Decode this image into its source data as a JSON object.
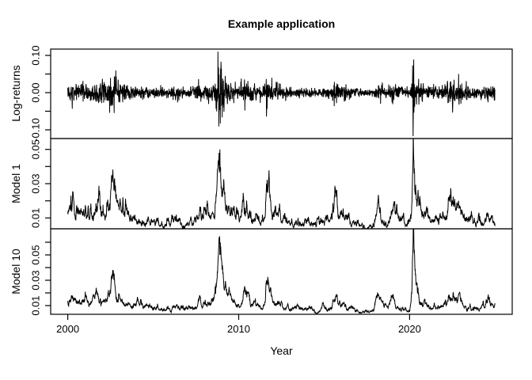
{
  "chart_data": {
    "type": "line",
    "title": "Example application",
    "xlabel": "Year",
    "background": "#ffffff",
    "line_color": "#000000",
    "text_color": "#000000",
    "xlim": [
      1999.0,
      2026.0
    ],
    "x_data_range": [
      2000.0,
      2025.0
    ],
    "x_ticks": [
      2000,
      2010,
      2020
    ],
    "x_tick_labels": [
      "2000",
      "2010",
      "2020"
    ],
    "points_per_year": 80,
    "seed": 42,
    "panels": [
      {
        "name": "log-returns",
        "ylabel": "Log-returns",
        "ylim": [
          -0.1234,
          0.117
        ],
        "ticks": [
          0.1,
          0.05,
          0.0,
          -0.05,
          -0.1
        ],
        "labeled_ticks": [
          0.1,
          0.0,
          -0.1
        ],
        "tick_labels": [
          "0.10",
          "0.00",
          "-0.10"
        ]
      },
      {
        "name": "model-1",
        "ylabel": "Model 1",
        "ylim": [
          0.0037,
          0.0563
        ],
        "ticks": [
          0.05,
          0.04,
          0.03,
          0.02,
          0.01
        ],
        "labeled_ticks": [
          0.05,
          0.03,
          0.01
        ],
        "tick_labels": [
          "0.05",
          "0.03",
          "0.01"
        ]
      },
      {
        "name": "model-10",
        "ylabel": "Model 10",
        "ylim": [
          0.0031,
          0.0706
        ],
        "ticks": [
          0.06,
          0.05,
          0.04,
          0.03,
          0.02,
          0.01
        ],
        "labeled_ticks": [
          0.05,
          0.03,
          0.01
        ],
        "tick_labels": [
          "0.05",
          "0.03",
          "0.01"
        ]
      }
    ],
    "volatility_profile": [
      [
        2000.0,
        0.013
      ],
      [
        2000.25,
        0.016
      ],
      [
        2000.5,
        0.012
      ],
      [
        2000.75,
        0.014
      ],
      [
        2001.0,
        0.013
      ],
      [
        2001.3,
        0.012
      ],
      [
        2001.55,
        0.014
      ],
      [
        2001.72,
        0.019
      ],
      [
        2001.95,
        0.013
      ],
      [
        2002.2,
        0.014
      ],
      [
        2002.45,
        0.02
      ],
      [
        2002.6,
        0.028
      ],
      [
        2002.85,
        0.02
      ],
      [
        2003.05,
        0.017
      ],
      [
        2003.3,
        0.013
      ],
      [
        2003.6,
        0.01
      ],
      [
        2004.0,
        0.009
      ],
      [
        2004.4,
        0.008
      ],
      [
        2004.9,
        0.007
      ],
      [
        2005.3,
        0.0075
      ],
      [
        2005.8,
        0.007
      ],
      [
        2006.2,
        0.008
      ],
      [
        2006.45,
        0.011
      ],
      [
        2006.75,
        0.007
      ],
      [
        2007.0,
        0.0065
      ],
      [
        2007.3,
        0.009
      ],
      [
        2007.65,
        0.013
      ],
      [
        2007.9,
        0.011
      ],
      [
        2008.1,
        0.014
      ],
      [
        2008.35,
        0.011
      ],
      [
        2008.6,
        0.014
      ],
      [
        2008.73,
        0.024
      ],
      [
        2008.82,
        0.04
      ],
      [
        2008.9,
        0.048
      ],
      [
        2009.05,
        0.033
      ],
      [
        2009.25,
        0.023
      ],
      [
        2009.5,
        0.016
      ],
      [
        2009.8,
        0.011
      ],
      [
        2010.1,
        0.009
      ],
      [
        2010.33,
        0.018
      ],
      [
        2010.5,
        0.014
      ],
      [
        2010.75,
        0.01
      ],
      [
        2011.0,
        0.009
      ],
      [
        2011.3,
        0.008
      ],
      [
        2011.55,
        0.014
      ],
      [
        2011.63,
        0.029
      ],
      [
        2011.8,
        0.021
      ],
      [
        2012.0,
        0.014
      ],
      [
        2012.3,
        0.01
      ],
      [
        2012.6,
        0.008
      ],
      [
        2013.0,
        0.008
      ],
      [
        2013.4,
        0.007
      ],
      [
        2013.9,
        0.006
      ],
      [
        2014.3,
        0.006
      ],
      [
        2014.7,
        0.007
      ],
      [
        2015.1,
        0.008
      ],
      [
        2015.45,
        0.009
      ],
      [
        2015.65,
        0.021
      ],
      [
        2015.85,
        0.012
      ],
      [
        2016.05,
        0.015
      ],
      [
        2016.35,
        0.009
      ],
      [
        2016.7,
        0.007
      ],
      [
        2017.1,
        0.005
      ],
      [
        2017.5,
        0.004
      ],
      [
        2017.9,
        0.006
      ],
      [
        2018.1,
        0.019
      ],
      [
        2018.35,
        0.01
      ],
      [
        2018.65,
        0.008
      ],
      [
        2018.85,
        0.011
      ],
      [
        2018.98,
        0.016
      ],
      [
        2019.2,
        0.01
      ],
      [
        2019.5,
        0.008
      ],
      [
        2019.8,
        0.007
      ],
      [
        2020.0,
        0.007
      ],
      [
        2020.13,
        0.016
      ],
      [
        2020.21,
        0.055
      ],
      [
        2020.3,
        0.03
      ],
      [
        2020.45,
        0.018
      ],
      [
        2020.65,
        0.013
      ],
      [
        2020.9,
        0.012
      ],
      [
        2021.1,
        0.01
      ],
      [
        2021.4,
        0.008
      ],
      [
        2021.7,
        0.007
      ],
      [
        2021.95,
        0.01
      ],
      [
        2022.15,
        0.014
      ],
      [
        2022.4,
        0.019
      ],
      [
        2022.6,
        0.016
      ],
      [
        2022.8,
        0.014
      ],
      [
        2022.95,
        0.016
      ],
      [
        2023.15,
        0.011
      ],
      [
        2023.45,
        0.009
      ],
      [
        2023.75,
        0.007
      ],
      [
        2024.05,
        0.008
      ],
      [
        2024.35,
        0.007
      ],
      [
        2024.58,
        0.014
      ],
      [
        2024.75,
        0.009
      ],
      [
        2025.0,
        0.01
      ]
    ],
    "extreme_returns": [
      [
        2008.79,
        0.11
      ],
      [
        2008.84,
        -0.091
      ],
      [
        2008.93,
        -0.083
      ],
      [
        2020.205,
        -0.117
      ],
      [
        2020.235,
        0.089
      ],
      [
        2011.62,
        -0.064
      ],
      [
        2022.86,
        0.05
      ],
      [
        2010.36,
        -0.048
      ]
    ],
    "model_peaks": [
      {
        "year": 2020.215,
        "model1": 0.063,
        "model10": 0.076
      },
      {
        "year": 2008.9,
        "model1": 0.05,
        "model10": 0.05
      }
    ]
  }
}
